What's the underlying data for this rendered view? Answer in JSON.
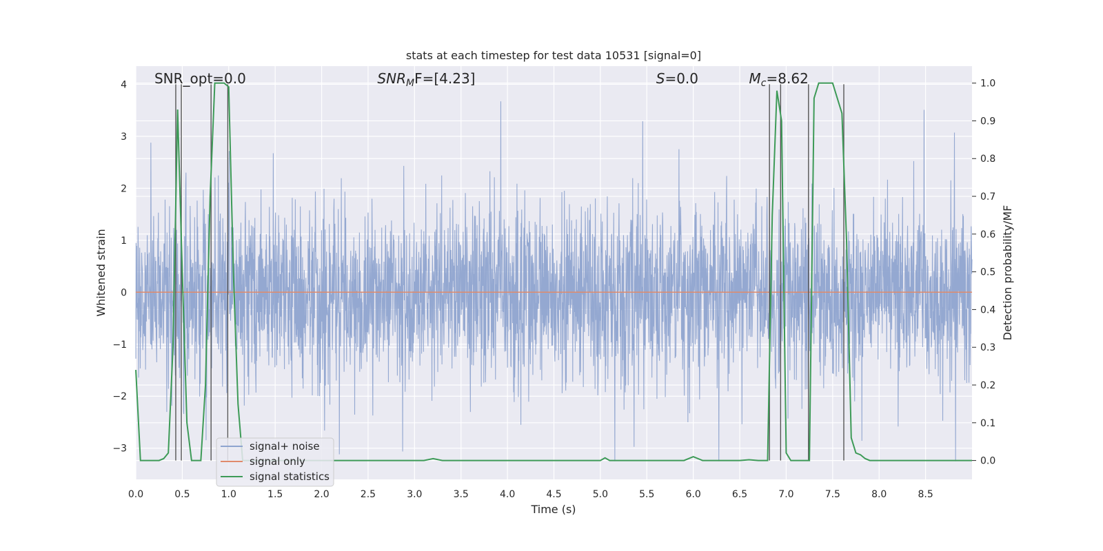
{
  "chart_data": {
    "type": "line",
    "title": "stats at each timestep for test data 10531 [signal=0]",
    "xlabel": "Time (s)",
    "ylabel_left": "Whitened strain",
    "ylabel_right": "Detection probability/MF",
    "xlim": [
      0,
      9.0
    ],
    "ylim_left": [
      -3.6,
      4.35
    ],
    "ylim_right": [
      -0.05,
      1.045
    ],
    "x_ticks": [
      "0.0",
      "0.5",
      "1.0",
      "1.5",
      "2.0",
      "2.5",
      "3.0",
      "3.5",
      "4.0",
      "4.5",
      "5.0",
      "5.5",
      "6.0",
      "6.5",
      "7.0",
      "7.5",
      "8.0",
      "8.5"
    ],
    "y_ticks_left": [
      "4",
      "3",
      "2",
      "1",
      "0",
      "−1",
      "−2",
      "−3"
    ],
    "y_ticks_left_values": [
      4,
      3,
      2,
      1,
      0,
      -1,
      -2,
      -3
    ],
    "y_ticks_right": [
      "1.0",
      "0.9",
      "0.8",
      "0.7",
      "0.6",
      "0.5",
      "0.4",
      "0.3",
      "0.2",
      "0.1",
      "0.0"
    ],
    "y_ticks_right_values": [
      1.0,
      0.9,
      0.8,
      0.7,
      0.6,
      0.5,
      0.4,
      0.3,
      0.2,
      0.1,
      0.0
    ],
    "annotations": [
      {
        "kind": "plain",
        "text": "SNR_opt=0.0",
        "x": 0.2
      },
      {
        "kind": "snrmf",
        "base": "SNR",
        "sub": "M",
        "tail": "F=[4.23]",
        "x": 2.6
      },
      {
        "kind": "italic",
        "var": "S",
        "tail": "=0.0",
        "x": 5.6
      },
      {
        "kind": "mc",
        "base": "M",
        "sub": "c",
        "tail": "=8.62",
        "x": 6.6
      }
    ],
    "series": [
      {
        "name": "signal+ noise",
        "color": "#8fa4cf",
        "kind": "noise",
        "std": 0.85
      },
      {
        "name": "signal only",
        "color": "#e08a6b",
        "values": [
          0,
          0
        ],
        "x": [
          0,
          9.0
        ]
      },
      {
        "name": "signal statistics",
        "color": "#3d9a57",
        "x": [
          0.0,
          0.05,
          0.1,
          0.15,
          0.2,
          0.25,
          0.3,
          0.35,
          0.4,
          0.45,
          0.5,
          0.55,
          0.6,
          0.65,
          0.7,
          0.75,
          0.8,
          0.85,
          0.9,
          0.95,
          1.0,
          1.05,
          1.1,
          1.15,
          1.2,
          1.3,
          1.5,
          2.0,
          2.5,
          3.0,
          3.1,
          3.2,
          3.3,
          3.5,
          4.0,
          4.5,
          5.0,
          5.05,
          5.1,
          5.2,
          5.5,
          5.9,
          6.0,
          6.1,
          6.5,
          6.6,
          6.7,
          6.8,
          6.85,
          6.9,
          6.95,
          7.0,
          7.05,
          7.1,
          7.2,
          7.25,
          7.3,
          7.35,
          7.4,
          7.5,
          7.6,
          7.65,
          7.7,
          7.75,
          7.8,
          7.85,
          7.9,
          8.0,
          8.5,
          9.0
        ],
        "values": [
          0.24,
          0.0,
          0.0,
          0.0,
          0.0,
          0.0,
          0.005,
          0.02,
          0.3,
          0.93,
          0.5,
          0.1,
          0.0,
          0.0,
          0.0,
          0.2,
          0.7,
          1.0,
          1.0,
          1.0,
          0.99,
          0.5,
          0.15,
          0.0,
          0.0,
          0.0,
          0.0,
          0.0,
          0.0,
          0.0,
          0.0,
          0.005,
          0.0,
          0.0,
          0.0,
          0.0,
          0.0,
          0.007,
          0.0,
          0.0,
          0.0,
          0.0,
          0.01,
          0.0,
          0.0,
          0.002,
          0.0,
          0.0,
          0.65,
          0.98,
          0.9,
          0.02,
          0.0,
          0.0,
          0.0,
          0.0,
          0.96,
          1.0,
          1.0,
          1.0,
          0.92,
          0.58,
          0.06,
          0.02,
          0.015,
          0.005,
          0.0,
          0.0,
          0.0,
          0.0
        ]
      }
    ],
    "vlines_x": [
      0.43,
      0.49,
      0.81,
      0.99,
      6.82,
      6.94,
      7.24,
      7.62
    ],
    "legend": {
      "position": "lower-left",
      "entries": [
        "signal+ noise",
        "signal only",
        "signal statistics"
      ]
    }
  }
}
